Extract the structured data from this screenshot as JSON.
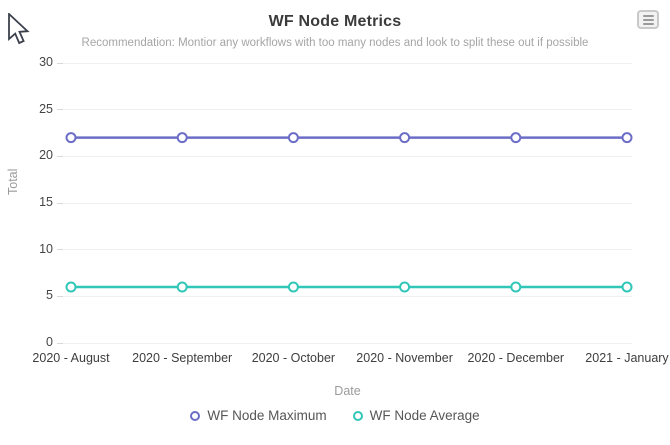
{
  "header": {
    "title": "WF Node Metrics",
    "subtitle": "Recommendation: Montior any workflows with too many nodes and look to split these out if possible"
  },
  "toolbar": {
    "menu_icon": "hamburger-menu-icon"
  },
  "cursor": {
    "icon": "mouse-pointer-icon"
  },
  "chart_data": {
    "type": "line",
    "title": "WF Node Metrics",
    "subtitle": "Recommendation: Montior any workflows with too many nodes and look to split these out if possible",
    "categories": [
      "2020 - August",
      "2020 - September",
      "2020 - October",
      "2020 - November",
      "2020 - December",
      "2021 - January"
    ],
    "series": [
      {
        "name": "WF Node Maximum",
        "color": "#6c6dc6",
        "values": [
          22,
          22,
          22,
          22,
          22,
          22
        ]
      },
      {
        "name": "WF Node Average",
        "color": "#30c7b8",
        "values": [
          6,
          6,
          6,
          6,
          6,
          6
        ]
      }
    ],
    "xlabel": "Date",
    "ylabel": "Total",
    "ylim": [
      0,
      30
    ],
    "yticks": [
      0,
      5,
      10,
      15,
      20,
      25,
      30
    ],
    "grid": true,
    "legend_position": "bottom",
    "marker": "ring"
  },
  "colors": {
    "grid": "#f0f0f0",
    "tick": "#d9d9d9",
    "axis_label": "#454545",
    "axis_title": "#9b9b9b",
    "title": "#3b3b3b",
    "subtitle": "#a5a5a5",
    "legend_text": "#565656"
  }
}
